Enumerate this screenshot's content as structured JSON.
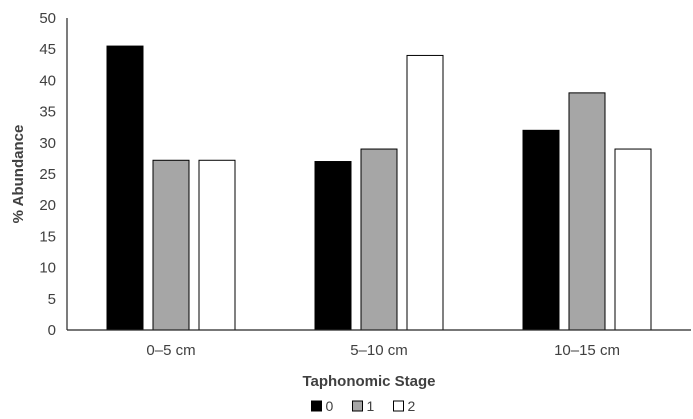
{
  "chart_data": {
    "type": "bar",
    "categories": [
      "0–5 cm",
      "5–10 cm",
      "10–15 cm"
    ],
    "series": [
      {
        "name": "0",
        "values": [
          45.5,
          27,
          32
        ],
        "color": "#000000"
      },
      {
        "name": "1",
        "values": [
          27.2,
          29,
          38
        ],
        "color": "#a6a6a6"
      },
      {
        "name": "2",
        "values": [
          27.2,
          44,
          29
        ],
        "color": "#ffffff"
      }
    ],
    "title": "",
    "xlabel": "Taphonomic Stage",
    "ylabel": "% Abundance",
    "ylim": [
      0,
      50
    ],
    "yticks": [
      "0",
      "5",
      "10",
      "15",
      "20",
      "25",
      "30",
      "35",
      "40",
      "45",
      "50"
    ],
    "grid": false,
    "legend_position": "bottom-center"
  }
}
